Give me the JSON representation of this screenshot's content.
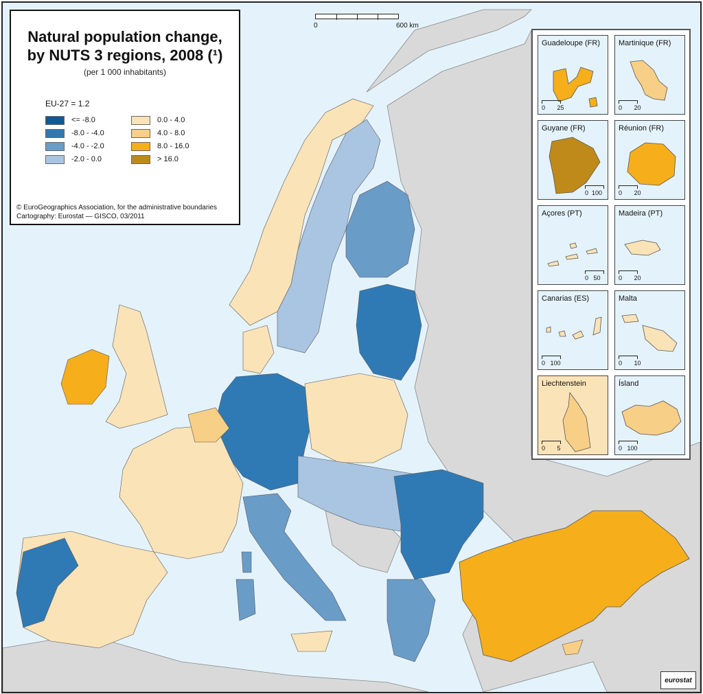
{
  "map": {
    "title_line1": "Natural population change,",
    "title_line2": "by NUTS 3 regions, 2008 (¹)",
    "subtitle": "(per 1 000 inhabitants)",
    "eu_average": "EU-27 = 1.2",
    "copyright_line1": "© EuroGeographics Association, for the administrative boundaries",
    "copyright_line2": "Cartography: Eurostat — GISCO, 03/2011",
    "logo": "eurostat"
  },
  "legend": [
    {
      "label": "<= -8.0",
      "color": "#0f5a91"
    },
    {
      "label": "-8.0 - -4.0",
      "color": "#2f7ab5"
    },
    {
      "label": "-4.0 - -2.0",
      "color": "#6a9cc8"
    },
    {
      "label": "-2.0 - 0.0",
      "color": "#a9c5e2"
    },
    {
      "label": "0.0 - 4.0",
      "color": "#fbe3b8"
    },
    {
      "label": "4.0 - 8.0",
      "color": "#f8cf86"
    },
    {
      "label": "8.0 - 16.0",
      "color": "#f6ae1b"
    },
    {
      "label": "> 16.0",
      "color": "#c08a1a"
    }
  ],
  "scale": {
    "zero": "0",
    "max": "600 km"
  },
  "colors": {
    "sea": "#e4f3fb",
    "non_eu_land": "#d9d9d9"
  },
  "insets": [
    {
      "name": "Guadeloupe (FR)",
      "scale": "25",
      "fill": "#f6ae1b"
    },
    {
      "name": "Martinique (FR)",
      "scale": "20",
      "fill": "#f8cf86"
    },
    {
      "name": "Guyane (FR)",
      "scale": "100",
      "fill": "#c08a1a"
    },
    {
      "name": "Réunion (FR)",
      "scale": "20",
      "fill": "#f6ae1b"
    },
    {
      "name": "Açores (PT)",
      "scale": "50",
      "fill": "#fbe3b8"
    },
    {
      "name": "Madeira (PT)",
      "scale": "20",
      "fill": "#fbe3b8"
    },
    {
      "name": "Canarias (ES)",
      "scale": "100",
      "fill": "#fbe3b8"
    },
    {
      "name": "Malta",
      "scale": "10",
      "fill": "#fbe3b8"
    },
    {
      "name": "Liechtenstein",
      "scale": "5",
      "fill": "#fbe3b8"
    },
    {
      "name": "Ísland",
      "scale": "100",
      "fill": "#f8cf86"
    }
  ]
}
